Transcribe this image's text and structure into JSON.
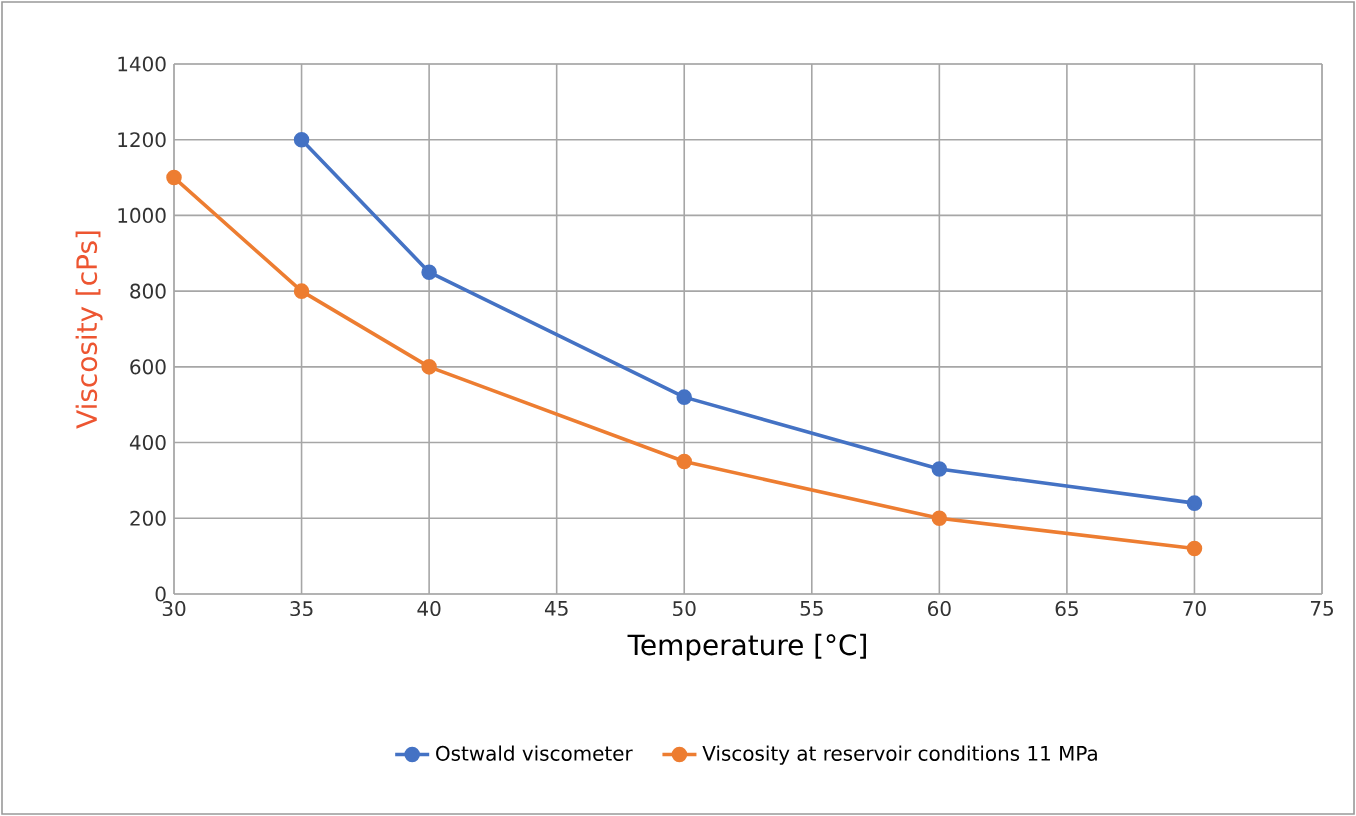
{
  "chart_data": {
    "type": "line",
    "xlabel": "Temperature [°C]",
    "ylabel": "Viscosity [cPs]",
    "xlim": [
      30,
      75
    ],
    "xticks": [
      30,
      35,
      40,
      45,
      50,
      55,
      60,
      65,
      70,
      75
    ],
    "ylim": [
      0,
      1400
    ],
    "yticks": [
      0,
      200,
      400,
      600,
      800,
      1000,
      1200,
      1400
    ],
    "grid": true,
    "legend": "bottom",
    "marker": "circle",
    "line_style": "solid",
    "series": [
      {
        "name": "Ostwald viscometer",
        "color": "#4472c4",
        "x": [
          35,
          40,
          50,
          60,
          70
        ],
        "values": [
          1200,
          850,
          520,
          330,
          240
        ]
      },
      {
        "name": "Viscosity at reservoir conditions 11 MPa",
        "color": "#ed7d31",
        "x": [
          30,
          35,
          40,
          50,
          60,
          70
        ],
        "values": [
          1100,
          800,
          600,
          350,
          200,
          120
        ]
      }
    ]
  }
}
